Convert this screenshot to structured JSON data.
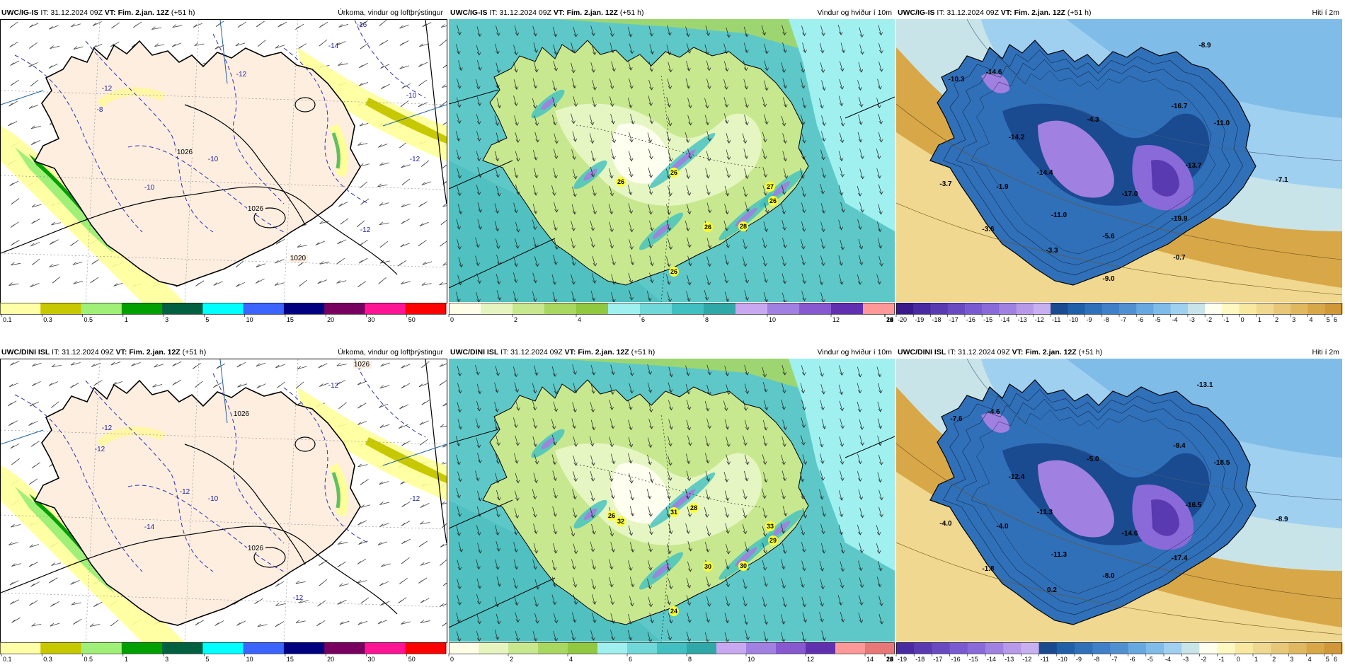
{
  "panels": [
    {
      "id": "p1",
      "model": "UWC/IG-IS",
      "init": "IT: 31.12.2024 09Z",
      "vt_label": "VT:",
      "vt": "Fim. 2.jan. 12Z",
      "lead": "(+51 h)",
      "field": "Úrkoma, vindur og loftþrýstingur",
      "kind": "precip",
      "legend": {
        "colors": [
          "#ffffa8",
          "#c8c800",
          "#a0f078",
          "#00a000",
          "#006040",
          "#00ffff",
          "#3c64ff",
          "#000080",
          "#780060",
          "#ff1493",
          "#ff0000"
        ],
        "ticks": [
          "0.1",
          "0.3",
          "0.5",
          "1",
          "3",
          "5",
          "10",
          "15",
          "20",
          "30",
          "50"
        ]
      },
      "labels": [
        "-12",
        "-10",
        "-8",
        "-14",
        "-16",
        "-12",
        "-10",
        "-12",
        "1026",
        "1026",
        "1020",
        "-10",
        "-12"
      ]
    },
    {
      "id": "p2",
      "model": "UWC/IG-IS",
      "init": "IT: 31.12.2024 09Z",
      "vt_label": "VT:",
      "vt": "Fim. 2.jan. 12Z",
      "lead": "(+51 h)",
      "field": "Vindur og hviður í 10m",
      "kind": "wind",
      "legend": {
        "colors": [
          "#ffffe8",
          "#e6f5c0",
          "#c8e890",
          "#a8d860",
          "#90c840",
          "#a0f0f0",
          "#70d8d8",
          "#40c0c0",
          "#30a8a8",
          "#c8a8f0",
          "#a080e0",
          "#8858d0",
          "#6030b0",
          "#ff9898"
        ],
        "ticks": [
          "0",
          "2",
          "4",
          "6",
          "8",
          "10",
          "12",
          "14",
          "16",
          "18",
          "20",
          "22",
          "24"
        ]
      },
      "labels": [
        "26",
        "26",
        "26",
        "28",
        "26",
        "27",
        "26"
      ]
    },
    {
      "id": "p3",
      "model": "UWC/IG-IS",
      "init": "IT: 31.12.2024 09Z",
      "vt_label": "VT:",
      "vt": "Fim. 2.jan. 12Z",
      "lead": "(+51 h)",
      "field": "Hiti í 2m",
      "kind": "temp",
      "legend": {
        "colors": [
          "#3a1a8a",
          "#4a2aa0",
          "#5a3ab0",
          "#6a4ac0",
          "#7a5ad0",
          "#8a6ad8",
          "#a080e0",
          "#b898e8",
          "#c8b0f0",
          "#1a4a90",
          "#2060a8",
          "#3070b8",
          "#4080c8",
          "#5090d0",
          "#68a8e0",
          "#80bce8",
          "#a0d0f0",
          "#c8e4e8",
          "#fffff0",
          "#fff8c0",
          "#f8e8a0",
          "#f0d890",
          "#e8c878",
          "#e0b860",
          "#d8a848",
          "#d09838"
        ],
        "ticks": [
          "-20",
          "-19",
          "-18",
          "-17",
          "-16",
          "-15",
          "-14",
          "-13",
          "-12",
          "-11",
          "-10",
          "-9",
          "-8",
          "-7",
          "-6",
          "-5",
          "-4",
          "-3",
          "-2",
          "-1",
          "0",
          "1",
          "2",
          "3",
          "4",
          "5",
          "6"
        ]
      },
      "labels": [
        "-8.9",
        "-10.3",
        "-14.6",
        "-16.7",
        "-4.3",
        "-11.0",
        "-14.2",
        "-14.4",
        "-13.7",
        "-3.7",
        "-1.9",
        "-17.0",
        "-7.1",
        "-11.0",
        "-19.9",
        "-3.6",
        "-5.6",
        "-3.3",
        "-0.7",
        "-9.0"
      ]
    },
    {
      "id": "p4",
      "model": "UWC/DINI ISL",
      "init": "IT: 31.12.2024 09Z",
      "vt_label": "VT:",
      "vt": "Fim. 2.jan. 12Z",
      "lead": "(+51 h)",
      "field": "Úrkoma, vindur og loftþrýstingur",
      "kind": "precip",
      "legend": {
        "colors": [
          "#ffffa8",
          "#c8c800",
          "#a0f078",
          "#00a000",
          "#006040",
          "#00ffff",
          "#3c64ff",
          "#000080",
          "#780060",
          "#ff1493",
          "#ff0000"
        ],
        "ticks": [
          "0.1",
          "0.3",
          "0.5",
          "1",
          "3",
          "5",
          "10",
          "15",
          "20",
          "30",
          "50"
        ]
      },
      "labels": [
        "-12",
        "-14",
        "-12",
        "-12",
        "1026",
        "1026",
        "-10",
        "-12",
        "-12",
        "1026",
        "-12"
      ]
    },
    {
      "id": "p5",
      "model": "UWC/DINI ISL",
      "init": "IT: 31.12.2024 09Z",
      "vt_label": "VT:",
      "vt": "Fim. 2.jan. 12Z",
      "lead": "(+51 h)",
      "field": "Vindur og hviður í 10m",
      "kind": "wind",
      "legend": {
        "colors": [
          "#ffffe8",
          "#e6f5c0",
          "#c8e890",
          "#a8d860",
          "#90c840",
          "#a0f0f0",
          "#70d8d8",
          "#40c0c0",
          "#30a8a8",
          "#c8a8f0",
          "#a080e0",
          "#8858d0",
          "#6030b0",
          "#ff9898",
          "#e87878"
        ],
        "ticks": [
          "0",
          "2",
          "4",
          "6",
          "8",
          "10",
          "12",
          "14",
          "16",
          "18",
          "20",
          "22",
          "24",
          "26"
        ]
      },
      "labels": [
        "31",
        "32",
        "24",
        "30",
        "30",
        "33",
        "29",
        "26",
        "28"
      ]
    },
    {
      "id": "p6",
      "model": "UWC/DINI ISL",
      "init": "IT: 31.12.2024 09Z",
      "vt_label": "VT:",
      "vt": "Fim. 2.jan. 12Z",
      "lead": "(+51 h)",
      "field": "Hiti í 2m",
      "kind": "temp",
      "legend": {
        "colors": [
          "#4a2aa0",
          "#5a3ab0",
          "#6a4ac0",
          "#7a5ad0",
          "#8a6ad8",
          "#a080e0",
          "#b898e8",
          "#c8b0f0",
          "#1a4a90",
          "#2060a8",
          "#3070b8",
          "#4080c8",
          "#5090d0",
          "#68a8e0",
          "#80bce8",
          "#a0d0f0",
          "#c8e4e8",
          "#fffff0",
          "#fff8c0",
          "#f8e8a0",
          "#f0d890",
          "#e8c878",
          "#e0b860",
          "#d8a848",
          "#d09838"
        ],
        "ticks": [
          "-19",
          "-18",
          "-17",
          "-16",
          "-15",
          "-14",
          "-13",
          "-12",
          "-11",
          "-10",
          "-9",
          "-8",
          "-7",
          "-6",
          "-5",
          "-4",
          "-3",
          "-2",
          "-1",
          "0",
          "1",
          "2",
          "3",
          "4",
          "5",
          "6"
        ]
      },
      "labels": [
        "-13.1",
        "-7.6",
        "-4.6",
        "-9.4",
        "-5.0",
        "-18.5",
        "-12.4",
        "-11.3",
        "-16.5",
        "-4.0",
        "-4.0",
        "-14.6",
        "-8.9",
        "-11.3",
        "-17.4",
        "-1.8",
        "-8.0",
        "0.2"
      ]
    }
  ]
}
